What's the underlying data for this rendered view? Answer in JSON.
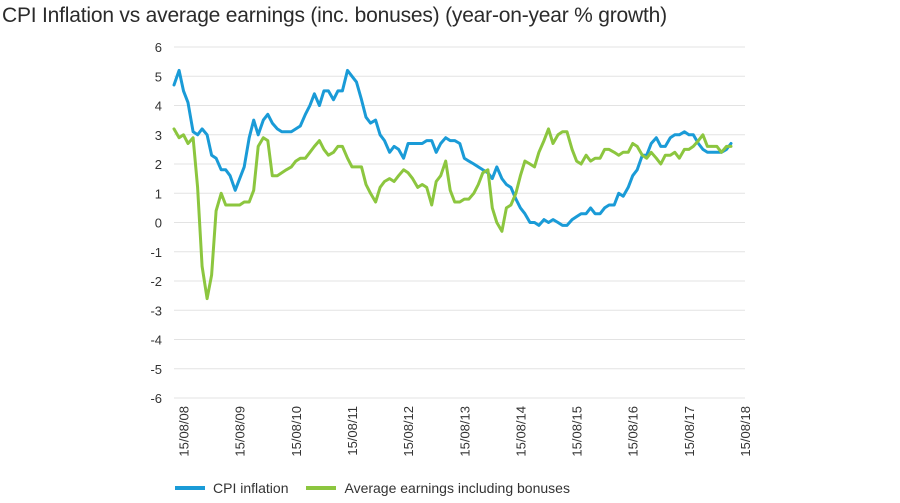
{
  "chart_data": {
    "type": "line",
    "title": "CPI Inflation vs average earnings (inc. bonuses) (year-on-year % growth)",
    "xlabel": "",
    "ylabel": "",
    "ylim": [
      -6,
      6
    ],
    "yticks": [
      "6",
      "5",
      "4",
      "3",
      "2",
      "1",
      "0",
      "-1",
      "-2",
      "-3",
      "-4",
      "-5",
      "-6"
    ],
    "xlim": [
      2008.45,
      2018.62
    ],
    "xticks": [
      {
        "label": "15/08/08",
        "pos": 2008.62
      },
      {
        "label": "15/08/09",
        "pos": 2009.62
      },
      {
        "label": "15/08/10",
        "pos": 2010.62
      },
      {
        "label": "15/08/11",
        "pos": 2011.62
      },
      {
        "label": "15/08/12",
        "pos": 2012.62
      },
      {
        "label": "15/08/13",
        "pos": 2013.62
      },
      {
        "label": "15/08/14",
        "pos": 2014.62
      },
      {
        "label": "15/08/15",
        "pos": 2015.62
      },
      {
        "label": "15/08/16",
        "pos": 2016.62
      },
      {
        "label": "15/08/17",
        "pos": 2017.62
      },
      {
        "label": "15/08/18",
        "pos": 2018.62
      }
    ],
    "grid": "horizontal",
    "legend_position": "bottom",
    "series": [
      {
        "name": "CPI inflation",
        "color": "#1a9bd7",
        "points": [
          [
            2008.45,
            4.7
          ],
          [
            2008.54,
            5.2
          ],
          [
            2008.62,
            4.5
          ],
          [
            2008.7,
            4.1
          ],
          [
            2008.79,
            3.1
          ],
          [
            2008.87,
            3.0
          ],
          [
            2008.95,
            3.2
          ],
          [
            2009.04,
            3.0
          ],
          [
            2009.12,
            2.3
          ],
          [
            2009.2,
            2.2
          ],
          [
            2009.29,
            1.8
          ],
          [
            2009.37,
            1.8
          ],
          [
            2009.45,
            1.6
          ],
          [
            2009.54,
            1.1
          ],
          [
            2009.62,
            1.5
          ],
          [
            2009.7,
            1.9
          ],
          [
            2009.79,
            2.9
          ],
          [
            2009.87,
            3.5
          ],
          [
            2009.95,
            3.0
          ],
          [
            2010.04,
            3.5
          ],
          [
            2010.12,
            3.7
          ],
          [
            2010.2,
            3.4
          ],
          [
            2010.29,
            3.2
          ],
          [
            2010.37,
            3.1
          ],
          [
            2010.45,
            3.1
          ],
          [
            2010.54,
            3.1
          ],
          [
            2010.62,
            3.2
          ],
          [
            2010.7,
            3.3
          ],
          [
            2010.79,
            3.7
          ],
          [
            2010.87,
            4.0
          ],
          [
            2010.95,
            4.4
          ],
          [
            2011.04,
            4.0
          ],
          [
            2011.12,
            4.5
          ],
          [
            2011.2,
            4.5
          ],
          [
            2011.29,
            4.2
          ],
          [
            2011.37,
            4.5
          ],
          [
            2011.45,
            4.5
          ],
          [
            2011.54,
            5.2
          ],
          [
            2011.62,
            5.0
          ],
          [
            2011.7,
            4.8
          ],
          [
            2011.79,
            4.2
          ],
          [
            2011.87,
            3.6
          ],
          [
            2011.95,
            3.4
          ],
          [
            2012.04,
            3.5
          ],
          [
            2012.12,
            3.0
          ],
          [
            2012.2,
            2.8
          ],
          [
            2012.29,
            2.4
          ],
          [
            2012.37,
            2.6
          ],
          [
            2012.45,
            2.5
          ],
          [
            2012.54,
            2.2
          ],
          [
            2012.62,
            2.7
          ],
          [
            2012.7,
            2.7
          ],
          [
            2012.79,
            2.7
          ],
          [
            2012.87,
            2.7
          ],
          [
            2012.95,
            2.8
          ],
          [
            2013.04,
            2.8
          ],
          [
            2013.12,
            2.4
          ],
          [
            2013.2,
            2.7
          ],
          [
            2013.29,
            2.9
          ],
          [
            2013.37,
            2.8
          ],
          [
            2013.45,
            2.8
          ],
          [
            2013.54,
            2.7
          ],
          [
            2013.62,
            2.2
          ],
          [
            2013.7,
            2.1
          ],
          [
            2013.79,
            2.0
          ],
          [
            2013.87,
            1.9
          ],
          [
            2013.95,
            1.8
          ],
          [
            2014.04,
            1.7
          ],
          [
            2014.12,
            1.5
          ],
          [
            2014.2,
            1.9
          ],
          [
            2014.29,
            1.5
          ],
          [
            2014.37,
            1.3
          ],
          [
            2014.45,
            1.2
          ],
          [
            2014.54,
            0.8
          ],
          [
            2014.62,
            0.5
          ],
          [
            2014.7,
            0.3
          ],
          [
            2014.79,
            0.0
          ],
          [
            2014.87,
            0.0
          ],
          [
            2014.95,
            -0.1
          ],
          [
            2015.04,
            0.1
          ],
          [
            2015.12,
            0.0
          ],
          [
            2015.2,
            0.1
          ],
          [
            2015.29,
            0.0
          ],
          [
            2015.37,
            -0.1
          ],
          [
            2015.45,
            -0.1
          ],
          [
            2015.54,
            0.1
          ],
          [
            2015.62,
            0.2
          ],
          [
            2015.7,
            0.3
          ],
          [
            2015.79,
            0.3
          ],
          [
            2015.87,
            0.5
          ],
          [
            2015.95,
            0.3
          ],
          [
            2016.04,
            0.3
          ],
          [
            2016.12,
            0.5
          ],
          [
            2016.2,
            0.6
          ],
          [
            2016.29,
            0.6
          ],
          [
            2016.37,
            1.0
          ],
          [
            2016.45,
            0.9
          ],
          [
            2016.54,
            1.2
          ],
          [
            2016.62,
            1.6
          ],
          [
            2016.7,
            1.8
          ],
          [
            2016.79,
            2.3
          ],
          [
            2016.87,
            2.3
          ],
          [
            2016.95,
            2.7
          ],
          [
            2017.04,
            2.9
          ],
          [
            2017.12,
            2.6
          ],
          [
            2017.2,
            2.6
          ],
          [
            2017.29,
            2.9
          ],
          [
            2017.37,
            3.0
          ],
          [
            2017.45,
            3.0
          ],
          [
            2017.54,
            3.1
          ],
          [
            2017.62,
            3.0
          ],
          [
            2017.7,
            3.0
          ],
          [
            2017.79,
            2.7
          ],
          [
            2017.87,
            2.5
          ],
          [
            2017.95,
            2.4
          ],
          [
            2018.04,
            2.4
          ],
          [
            2018.12,
            2.4
          ],
          [
            2018.2,
            2.4
          ],
          [
            2018.29,
            2.5
          ],
          [
            2018.37,
            2.7
          ]
        ]
      },
      {
        "name": "Average earnings including bonuses",
        "color": "#8cc63f",
        "points": [
          [
            2008.45,
            3.2
          ],
          [
            2008.54,
            2.9
          ],
          [
            2008.62,
            3.0
          ],
          [
            2008.7,
            2.7
          ],
          [
            2008.79,
            2.9
          ],
          [
            2008.87,
            1.2
          ],
          [
            2008.95,
            -1.5
          ],
          [
            2009.04,
            -2.6
          ],
          [
            2009.12,
            -1.8
          ],
          [
            2009.2,
            0.4
          ],
          [
            2009.29,
            1.0
          ],
          [
            2009.37,
            0.6
          ],
          [
            2009.45,
            0.6
          ],
          [
            2009.54,
            0.6
          ],
          [
            2009.62,
            0.6
          ],
          [
            2009.7,
            0.7
          ],
          [
            2009.79,
            0.7
          ],
          [
            2009.87,
            1.1
          ],
          [
            2009.95,
            2.6
          ],
          [
            2010.04,
            2.9
          ],
          [
            2010.12,
            2.8
          ],
          [
            2010.2,
            1.6
          ],
          [
            2010.29,
            1.6
          ],
          [
            2010.37,
            1.7
          ],
          [
            2010.45,
            1.8
          ],
          [
            2010.54,
            1.9
          ],
          [
            2010.62,
            2.1
          ],
          [
            2010.7,
            2.2
          ],
          [
            2010.79,
            2.2
          ],
          [
            2010.87,
            2.4
          ],
          [
            2010.95,
            2.6
          ],
          [
            2011.04,
            2.8
          ],
          [
            2011.12,
            2.5
          ],
          [
            2011.2,
            2.3
          ],
          [
            2011.29,
            2.4
          ],
          [
            2011.37,
            2.6
          ],
          [
            2011.45,
            2.6
          ],
          [
            2011.54,
            2.2
          ],
          [
            2011.62,
            1.9
          ],
          [
            2011.7,
            1.9
          ],
          [
            2011.79,
            1.9
          ],
          [
            2011.87,
            1.3
          ],
          [
            2011.95,
            1.0
          ],
          [
            2012.04,
            0.7
          ],
          [
            2012.12,
            1.2
          ],
          [
            2012.2,
            1.4
          ],
          [
            2012.29,
            1.5
          ],
          [
            2012.37,
            1.4
          ],
          [
            2012.45,
            1.6
          ],
          [
            2012.54,
            1.8
          ],
          [
            2012.62,
            1.7
          ],
          [
            2012.7,
            1.5
          ],
          [
            2012.79,
            1.2
          ],
          [
            2012.87,
            1.3
          ],
          [
            2012.95,
            1.2
          ],
          [
            2013.04,
            0.6
          ],
          [
            2013.12,
            1.4
          ],
          [
            2013.2,
            1.6
          ],
          [
            2013.29,
            2.1
          ],
          [
            2013.37,
            1.1
          ],
          [
            2013.45,
            0.7
          ],
          [
            2013.54,
            0.7
          ],
          [
            2013.62,
            0.8
          ],
          [
            2013.7,
            0.8
          ],
          [
            2013.79,
            1.0
          ],
          [
            2013.87,
            1.3
          ],
          [
            2013.95,
            1.7
          ],
          [
            2014.04,
            1.8
          ],
          [
            2014.12,
            0.5
          ],
          [
            2014.2,
            0.0
          ],
          [
            2014.29,
            -0.3
          ],
          [
            2014.37,
            0.5
          ],
          [
            2014.45,
            0.6
          ],
          [
            2014.54,
            1.0
          ],
          [
            2014.62,
            1.6
          ],
          [
            2014.7,
            2.1
          ],
          [
            2014.79,
            2.0
          ],
          [
            2014.87,
            1.9
          ],
          [
            2014.95,
            2.4
          ],
          [
            2015.04,
            2.8
          ],
          [
            2015.12,
            3.2
          ],
          [
            2015.2,
            2.7
          ],
          [
            2015.29,
            3.0
          ],
          [
            2015.37,
            3.1
          ],
          [
            2015.45,
            3.1
          ],
          [
            2015.54,
            2.5
          ],
          [
            2015.62,
            2.1
          ],
          [
            2015.7,
            2.0
          ],
          [
            2015.79,
            2.3
          ],
          [
            2015.87,
            2.1
          ],
          [
            2015.95,
            2.2
          ],
          [
            2016.04,
            2.2
          ],
          [
            2016.12,
            2.5
          ],
          [
            2016.2,
            2.5
          ],
          [
            2016.29,
            2.4
          ],
          [
            2016.37,
            2.3
          ],
          [
            2016.45,
            2.4
          ],
          [
            2016.54,
            2.4
          ],
          [
            2016.62,
            2.7
          ],
          [
            2016.7,
            2.6
          ],
          [
            2016.79,
            2.3
          ],
          [
            2016.87,
            2.2
          ],
          [
            2016.95,
            2.4
          ],
          [
            2017.04,
            2.2
          ],
          [
            2017.12,
            2.0
          ],
          [
            2017.2,
            2.3
          ],
          [
            2017.29,
            2.3
          ],
          [
            2017.37,
            2.4
          ],
          [
            2017.45,
            2.2
          ],
          [
            2017.54,
            2.5
          ],
          [
            2017.62,
            2.5
          ],
          [
            2017.7,
            2.6
          ],
          [
            2017.79,
            2.8
          ],
          [
            2017.87,
            3.0
          ],
          [
            2017.95,
            2.6
          ],
          [
            2018.04,
            2.6
          ],
          [
            2018.12,
            2.6
          ],
          [
            2018.2,
            2.4
          ],
          [
            2018.29,
            2.6
          ],
          [
            2018.37,
            2.6
          ]
        ]
      }
    ]
  },
  "legend": {
    "items": [
      {
        "label": "CPI inflation",
        "color": "#1a9bd7"
      },
      {
        "label": "Average earnings including bonuses",
        "color": "#8cc63f"
      }
    ]
  },
  "colors": {
    "grid": "#e3e3e3",
    "text": "#333333"
  }
}
